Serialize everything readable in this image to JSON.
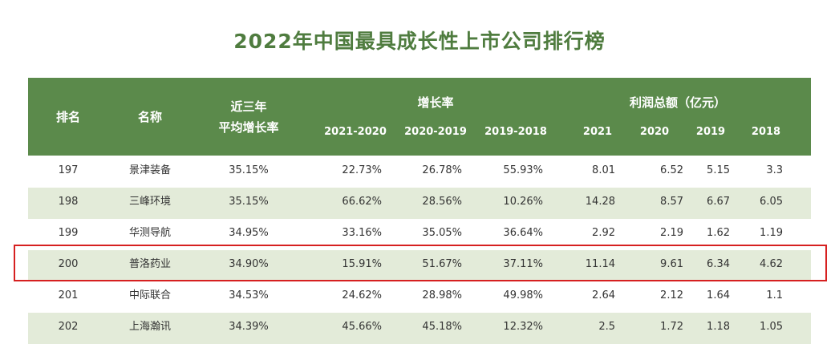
{
  "title": "2022年中国最具成长性上市公司排行榜",
  "header": {
    "rank": "排名",
    "name": "名称",
    "avg_line1": "近三年",
    "avg_line2": "平均增长率",
    "growth": "增长率",
    "growth_cols": [
      "2021-2020",
      "2020-2019",
      "2019-2018"
    ],
    "profit": "利润总额（亿元）",
    "profit_cols": [
      "2021",
      "2020",
      "2019",
      "2018"
    ]
  },
  "rows": [
    {
      "rank": "197",
      "name": "景津装备",
      "avg": "35.15%",
      "g": [
        "22.73%",
        "26.78%",
        "55.93%"
      ],
      "p": [
        "8.01",
        "6.52",
        "5.15",
        "3.3"
      ]
    },
    {
      "rank": "198",
      "name": "三峰环境",
      "avg": "35.15%",
      "g": [
        "66.62%",
        "28.56%",
        "10.26%"
      ],
      "p": [
        "14.28",
        "8.57",
        "6.67",
        "6.05"
      ]
    },
    {
      "rank": "199",
      "name": "华测导航",
      "avg": "34.95%",
      "g": [
        "33.16%",
        "35.05%",
        "36.64%"
      ],
      "p": [
        "2.92",
        "2.19",
        "1.62",
        "1.19"
      ]
    },
    {
      "rank": "200",
      "name": "普洛药业",
      "avg": "34.90%",
      "g": [
        "15.91%",
        "51.67%",
        "37.11%"
      ],
      "p": [
        "11.14",
        "9.61",
        "6.34",
        "4.62"
      ]
    },
    {
      "rank": "201",
      "name": "中际联合",
      "avg": "34.53%",
      "g": [
        "24.62%",
        "28.98%",
        "49.98%"
      ],
      "p": [
        "2.64",
        "2.12",
        "1.64",
        "1.1"
      ]
    },
    {
      "rank": "202",
      "name": "上海瀚讯",
      "avg": "34.39%",
      "g": [
        "45.66%",
        "45.18%",
        "12.32%"
      ],
      "p": [
        "2.5",
        "1.72",
        "1.18",
        "1.05"
      ]
    }
  ],
  "highlighted_rank": "200",
  "colors": {
    "header": "#5b8a4b",
    "title": "#4f7c3f",
    "alt_row": "#e3ebd9",
    "highlight": "#d62020"
  }
}
